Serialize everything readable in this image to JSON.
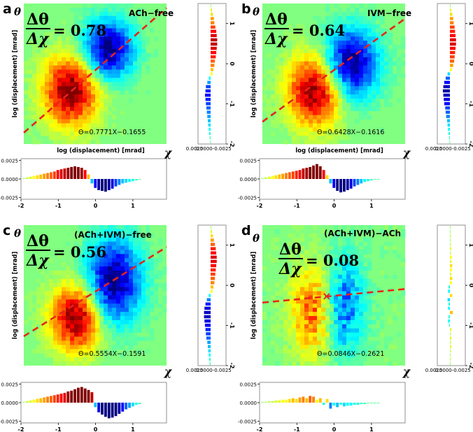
{
  "chart_data": [
    {
      "type": "heatmap",
      "letter": "a",
      "condition": "ACh−free",
      "theta": "θ",
      "frac_num": "Δθ",
      "frac_den": "Δχ",
      "slope_text": "= 0.78",
      "slope": 0.7771,
      "intercept": -0.1655,
      "equation": "Θ=0.7771X−0.1655",
      "xlabel": "log (displacement) [mrad]",
      "ylabel": "log (displacement) [mrad]",
      "chi": "χ",
      "xlim": [
        -2,
        2
      ],
      "ylim": [
        -2,
        1.5
      ],
      "x_ticks": [
        "-2",
        "-1",
        "0",
        "1"
      ],
      "y_ticks": [
        "1",
        "0",
        "-1",
        "-2"
      ],
      "marg_ticks": [
        "0.0025",
        "0.0000",
        "-0.0025"
      ],
      "x_marginal_values": [
        0.0001,
        0.0002,
        0.0003,
        0.0004,
        0.0005,
        0.0006,
        0.0007,
        0.0008,
        0.0009,
        0.001,
        0.0012,
        0.0013,
        0.0014,
        0.0015,
        0.0016,
        0.0017,
        0.0016,
        0.0015,
        0.0012,
        0.0006,
        -0.0006,
        -0.0012,
        -0.0015,
        -0.0016,
        -0.0017,
        -0.0015,
        -0.0013,
        -0.001,
        -0.0008,
        -0.0006,
        -0.0005,
        -0.0004,
        -0.0003,
        -0.0002,
        -0.0001
      ],
      "y_marginal_values": [
        0.0001,
        0.0003,
        0.0005,
        0.0007,
        0.0008,
        0.001,
        0.0012,
        0.0013,
        0.0014,
        0.0014,
        0.0013,
        0.0012,
        0.0011,
        0.0009,
        0.0008,
        0.0006,
        0.0004,
        -0.0004,
        -0.0007,
        -0.001,
        -0.0011,
        -0.0012,
        -0.0011,
        -0.001,
        -0.0009,
        -0.0008,
        -0.0007,
        -0.0006,
        -0.0005,
        -0.0004,
        -0.0003,
        -0.0002,
        -0.0001
      ]
    },
    {
      "type": "heatmap",
      "letter": "b",
      "condition": "IVM−free",
      "theta": "θ",
      "frac_num": "Δθ",
      "frac_den": "Δχ",
      "slope_text": "= 0.64",
      "slope": 0.6428,
      "intercept": -0.1616,
      "equation": "Θ=0.6428X−0.1616",
      "xlabel": "log (displacement) [mrad]",
      "ylabel": "log (displacement) [mrad]",
      "chi": "χ",
      "xlim": [
        -2,
        2
      ],
      "ylim": [
        -2,
        1.5
      ],
      "x_ticks": [
        "-2",
        "-1",
        "0",
        "1"
      ],
      "y_ticks": [
        "1",
        "0",
        "-1",
        "-2"
      ],
      "marg_ticks": [
        "0.0025",
        "0.0000",
        "-0.0025"
      ],
      "x_marginal_values": [
        0.0001,
        0.0002,
        0.0003,
        0.0004,
        0.0005,
        0.0006,
        0.0007,
        0.0008,
        0.0009,
        0.001,
        0.0011,
        0.0012,
        0.0014,
        0.0015,
        0.0016,
        0.0018,
        0.002,
        0.0017,
        0.0012,
        0.0005,
        -0.0006,
        -0.0012,
        -0.0016,
        -0.0018,
        -0.0017,
        -0.0015,
        -0.0013,
        -0.001,
        -0.0008,
        -0.0006,
        -0.0004,
        -0.0003,
        -0.0002,
        -0.0001,
        -0.0001
      ],
      "y_marginal_values": [
        0.0001,
        0.0003,
        0.0005,
        0.0007,
        0.0008,
        0.001,
        0.0011,
        0.0012,
        0.0013,
        0.0013,
        0.0012,
        0.0011,
        0.001,
        0.0009,
        0.0007,
        0.0004,
        -0.0005,
        -0.0009,
        -0.0012,
        -0.0014,
        -0.0015,
        -0.0014,
        -0.0013,
        -0.0012,
        -0.001,
        -0.0009,
        -0.0008,
        -0.0006,
        -0.0005,
        -0.0004,
        -0.0003,
        -0.0002,
        -0.0001
      ]
    },
    {
      "type": "heatmap",
      "letter": "c",
      "condition": "(ACh+IVM)−free",
      "theta": "θ",
      "frac_num": "Δθ",
      "frac_den": "Δχ",
      "slope_text": "= 0.56",
      "slope": 0.5554,
      "intercept": -0.1591,
      "equation": "Θ=0.5554X−0.1591",
      "xlabel": "",
      "ylabel": "log (displacement) [mrad]",
      "chi": "χ",
      "xlim": [
        -2,
        2
      ],
      "ylim": [
        -2,
        1.5
      ],
      "x_ticks": [
        "-2",
        "-1",
        "0",
        "1"
      ],
      "y_ticks": [
        "1",
        "0",
        "-1",
        "-2"
      ],
      "marg_ticks": [
        "0.0025",
        "0.0000",
        "-0.0025"
      ],
      "x_marginal_values": [
        0.0001,
        0.0002,
        0.0003,
        0.0004,
        0.0005,
        0.0006,
        0.0007,
        0.0008,
        0.0009,
        0.001,
        0.0011,
        0.0012,
        0.0013,
        0.0015,
        0.0016,
        0.0018,
        0.002,
        0.0021,
        0.0019,
        0.0017,
        0.0014,
        -0.0006,
        -0.0013,
        -0.0016,
        -0.0019,
        -0.0021,
        -0.002,
        -0.0018,
        -0.0015,
        -0.0012,
        -0.0009,
        -0.0007,
        -0.0005,
        -0.0003,
        -0.0002
      ],
      "y_marginal_values": [
        0.0001,
        0.0003,
        0.0005,
        0.0007,
        0.0009,
        0.0011,
        0.0012,
        0.0013,
        0.0013,
        0.0012,
        0.0011,
        0.001,
        0.0009,
        0.0008,
        0.0006,
        0.0004,
        -0.0004,
        -0.0008,
        -0.0011,
        -0.0013,
        -0.0014,
        -0.0014,
        -0.0013,
        -0.0012,
        -0.0011,
        -0.001,
        -0.0009,
        -0.0007,
        -0.0006,
        -0.0005,
        -0.0004,
        -0.0003,
        -0.0002
      ]
    },
    {
      "type": "heatmap",
      "letter": "d",
      "condition": "(ACh+IVM)−ACh",
      "theta": "θ",
      "frac_num": "Δθ",
      "frac_den": "Δχ",
      "slope_text": "= 0.08",
      "slope": 0.0846,
      "intercept": -0.2621,
      "equation": "Θ=0.0846X−0.2621",
      "xlabel": "",
      "ylabel": "log (displacement) [mrad]",
      "chi": "χ",
      "xlim": [
        -2,
        2
      ],
      "ylim": [
        -2,
        1.5
      ],
      "x_ticks": [
        "-2",
        "-1",
        "0",
        "1"
      ],
      "y_ticks": [
        "1",
        "0",
        "-1",
        "-2"
      ],
      "marg_ticks": [
        "0.0025",
        "0.0000",
        "-0.0025"
      ],
      "x_marginal_values": [
        0.0001,
        0.0001,
        0.0002,
        0.0002,
        0.0003,
        0.0003,
        0.0004,
        0.0004,
        0.0005,
        0.0006,
        0.0005,
        0.0007,
        0.0008,
        0.0006,
        0.0009,
        0.0008,
        0.0004,
        0.0006,
        -0.0003,
        0.0005,
        -0.0008,
        -0.0004,
        -0.0006,
        -0.0003,
        -0.0005,
        -0.0004,
        -0.0004,
        -0.0003,
        -0.0003,
        -0.0002,
        -0.0002,
        -0.0001,
        -0.0001,
        -0.0001,
        -0.0001
      ],
      "y_marginal_values": [
        0.0001,
        0.0001,
        0.0002,
        0.0001,
        0.0002,
        0.0003,
        0.0002,
        0.0004,
        0.0003,
        0.0005,
        0.0004,
        0.0003,
        0.0005,
        0.0004,
        -0.0003,
        -0.0004,
        0.0005,
        -0.0005,
        -0.0003,
        -0.0004,
        0.0006,
        -0.0003,
        -0.0004,
        -0.0002,
        0.0003,
        0.0002,
        0.0003,
        0.0002,
        0.0003,
        0.0002,
        0.0001,
        0.0002,
        0.0001
      ]
    }
  ]
}
